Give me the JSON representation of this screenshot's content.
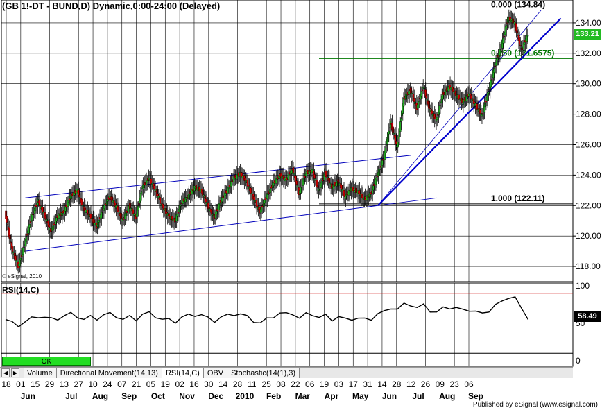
{
  "title": "(GB 1!-DT - BUND,D) Dynamic,0:00-24:00 (Delayed)",
  "credit": "© eSignal, 2010",
  "published": "Published by eSignal (www.esignal.com)",
  "last_price": "133.21",
  "rsi_label": "RSI(14,C)",
  "rsi_value": "58.49",
  "ok_label": "OK",
  "tabs": [
    {
      "label": "Volume",
      "active": false
    },
    {
      "label": "Directional Movement(14,13)",
      "active": false
    },
    {
      "label": "RSI(14,C)",
      "active": true
    },
    {
      "label": "OBV",
      "active": false
    },
    {
      "label": "Stochastic(14(1),3)",
      "active": false
    }
  ],
  "colors": {
    "up": "#22aa22",
    "down": "#cc0000",
    "channel": "#0000bb",
    "trend": "#0000cc",
    "fib_top": "#000000",
    "fib_mid": "#007700",
    "rsi_upper": "#cc0000",
    "rsi_line": "#000000",
    "price_badge": "#22bb22"
  },
  "chart_data": [
    {
      "type": "candlestick",
      "instrument": "BUND",
      "ylim": [
        117,
        135.5
      ],
      "y_ticks": [
        118.0,
        120.0,
        122.0,
        124.0,
        126.0,
        128.0,
        130.0,
        132.0,
        134.0
      ],
      "x_tick_labels": [
        "18",
        "01",
        "15",
        "29",
        "13",
        "27",
        "10",
        "24",
        "07",
        "21",
        "05",
        "19",
        "02",
        "16",
        "30",
        "14",
        "28",
        "11",
        "25",
        "08",
        "22",
        "06",
        "19",
        "03",
        "17",
        "31",
        "14",
        "28",
        "12",
        "26",
        "09",
        "23",
        "06"
      ],
      "month_labels": [
        "Jun",
        "Jul",
        "Aug",
        "Sep",
        "Oct",
        "Nov",
        "Dec",
        "2010",
        "Feb",
        "Mar",
        "Apr",
        "May",
        "Jun",
        "Jul",
        "Aug",
        "Sep"
      ],
      "close_path": [
        [
          0,
          121.5
        ],
        [
          1,
          119.2
        ],
        [
          2,
          118.0
        ],
        [
          3,
          119.5
        ],
        [
          4,
          121.2
        ],
        [
          5,
          122.3
        ],
        [
          6,
          121.4
        ],
        [
          7,
          120.3
        ],
        [
          8,
          121.3
        ],
        [
          9,
          121.6
        ],
        [
          10,
          122.6
        ],
        [
          11,
          123.0
        ],
        [
          12,
          121.8
        ],
        [
          13,
          121.3
        ],
        [
          14,
          120.6
        ],
        [
          15,
          121.8
        ],
        [
          16,
          122.6
        ],
        [
          17,
          121.9
        ],
        [
          18,
          121.0
        ],
        [
          19,
          122.0
        ],
        [
          20,
          121.2
        ],
        [
          21,
          123.2
        ],
        [
          22,
          123.8
        ],
        [
          23,
          123.0
        ],
        [
          24,
          122.0
        ],
        [
          25,
          121.3
        ],
        [
          26,
          121.0
        ],
        [
          27,
          122.2
        ],
        [
          28,
          122.6
        ],
        [
          29,
          123.2
        ],
        [
          30,
          123.0
        ],
        [
          31,
          122.0
        ],
        [
          32,
          121.2
        ],
        [
          33,
          122.3
        ],
        [
          34,
          123.0
        ],
        [
          35,
          123.8
        ],
        [
          36,
          124.1
        ],
        [
          37,
          123.5
        ],
        [
          38,
          122.5
        ],
        [
          39,
          121.6
        ],
        [
          40,
          122.6
        ],
        [
          41,
          123.4
        ],
        [
          42,
          124.0
        ],
        [
          43,
          123.7
        ],
        [
          44,
          124.4
        ],
        [
          45,
          122.8
        ],
        [
          46,
          124.1
        ],
        [
          47,
          124.3
        ],
        [
          48,
          123.0
        ],
        [
          49,
          124.1
        ],
        [
          50,
          123.2
        ],
        [
          51,
          123.6
        ],
        [
          52,
          122.6
        ],
        [
          53,
          123.1
        ],
        [
          54,
          122.9
        ],
        [
          55,
          122.4
        ],
        [
          56,
          122.8
        ],
        [
          57,
          124.0
        ],
        [
          58,
          125.2
        ],
        [
          59,
          127.5
        ],
        [
          60,
          125.8
        ],
        [
          61,
          129.0
        ],
        [
          62,
          129.6
        ],
        [
          63,
          128.4
        ],
        [
          64,
          129.8
        ],
        [
          65,
          128.3
        ],
        [
          66,
          127.6
        ],
        [
          67,
          129.3
        ],
        [
          68,
          129.8
        ],
        [
          69,
          129.3
        ],
        [
          70,
          128.8
        ],
        [
          71,
          129.3
        ],
        [
          72,
          128.6
        ],
        [
          73,
          127.9
        ],
        [
          74,
          129.5
        ],
        [
          75,
          131.2
        ],
        [
          76,
          132.5
        ],
        [
          77,
          134.3
        ],
        [
          78,
          134.0
        ],
        [
          79,
          132.2
        ],
        [
          80,
          133.2
        ]
      ],
      "rsi": [
        55,
        50,
        48,
        52,
        56,
        60,
        58,
        55,
        57,
        60,
        62,
        60,
        55,
        58,
        57,
        61,
        62,
        60,
        55,
        58,
        56,
        62,
        63,
        60,
        55,
        54,
        53,
        58,
        60,
        62,
        61,
        56,
        54,
        58,
        60,
        63,
        62,
        58,
        54,
        50,
        55,
        60,
        63,
        62,
        64,
        56,
        62,
        63,
        57,
        60,
        56,
        58,
        55,
        57,
        56,
        55,
        57,
        62,
        65,
        72,
        68,
        75,
        76,
        70,
        74,
        68,
        64,
        70,
        72,
        70,
        67,
        69,
        65,
        62,
        68,
        74,
        78,
        86,
        84,
        68,
        58
      ],
      "rsi_ylim": [
        0,
        100
      ],
      "rsi_ticks": [
        0,
        50,
        100
      ],
      "rsi_overbought": 90,
      "rsi_oversold": 10,
      "fib_levels": [
        {
          "label": "0.000 (134.84)",
          "value": 134.84
        },
        {
          "label": "0.250 (131.6575)",
          "value": 131.6575
        },
        {
          "label": "1.000 (122.11)",
          "value": 122.11
        }
      ],
      "channel": {
        "upper": [
          [
            3,
            122.5
          ],
          [
            62,
            125.3
          ]
        ],
        "lower": [
          [
            3,
            119.0
          ],
          [
            57,
            122.0
          ]
        ]
      },
      "trendline": [
        [
          57,
          122.0
        ],
        [
          85,
          134.3
        ]
      ],
      "fan_lines": [
        [
          [
            57,
            122.0
          ],
          [
            82,
            134.84
          ]
        ],
        [
          [
            57,
            122.0
          ],
          [
            66,
            122.5
          ]
        ]
      ]
    }
  ]
}
